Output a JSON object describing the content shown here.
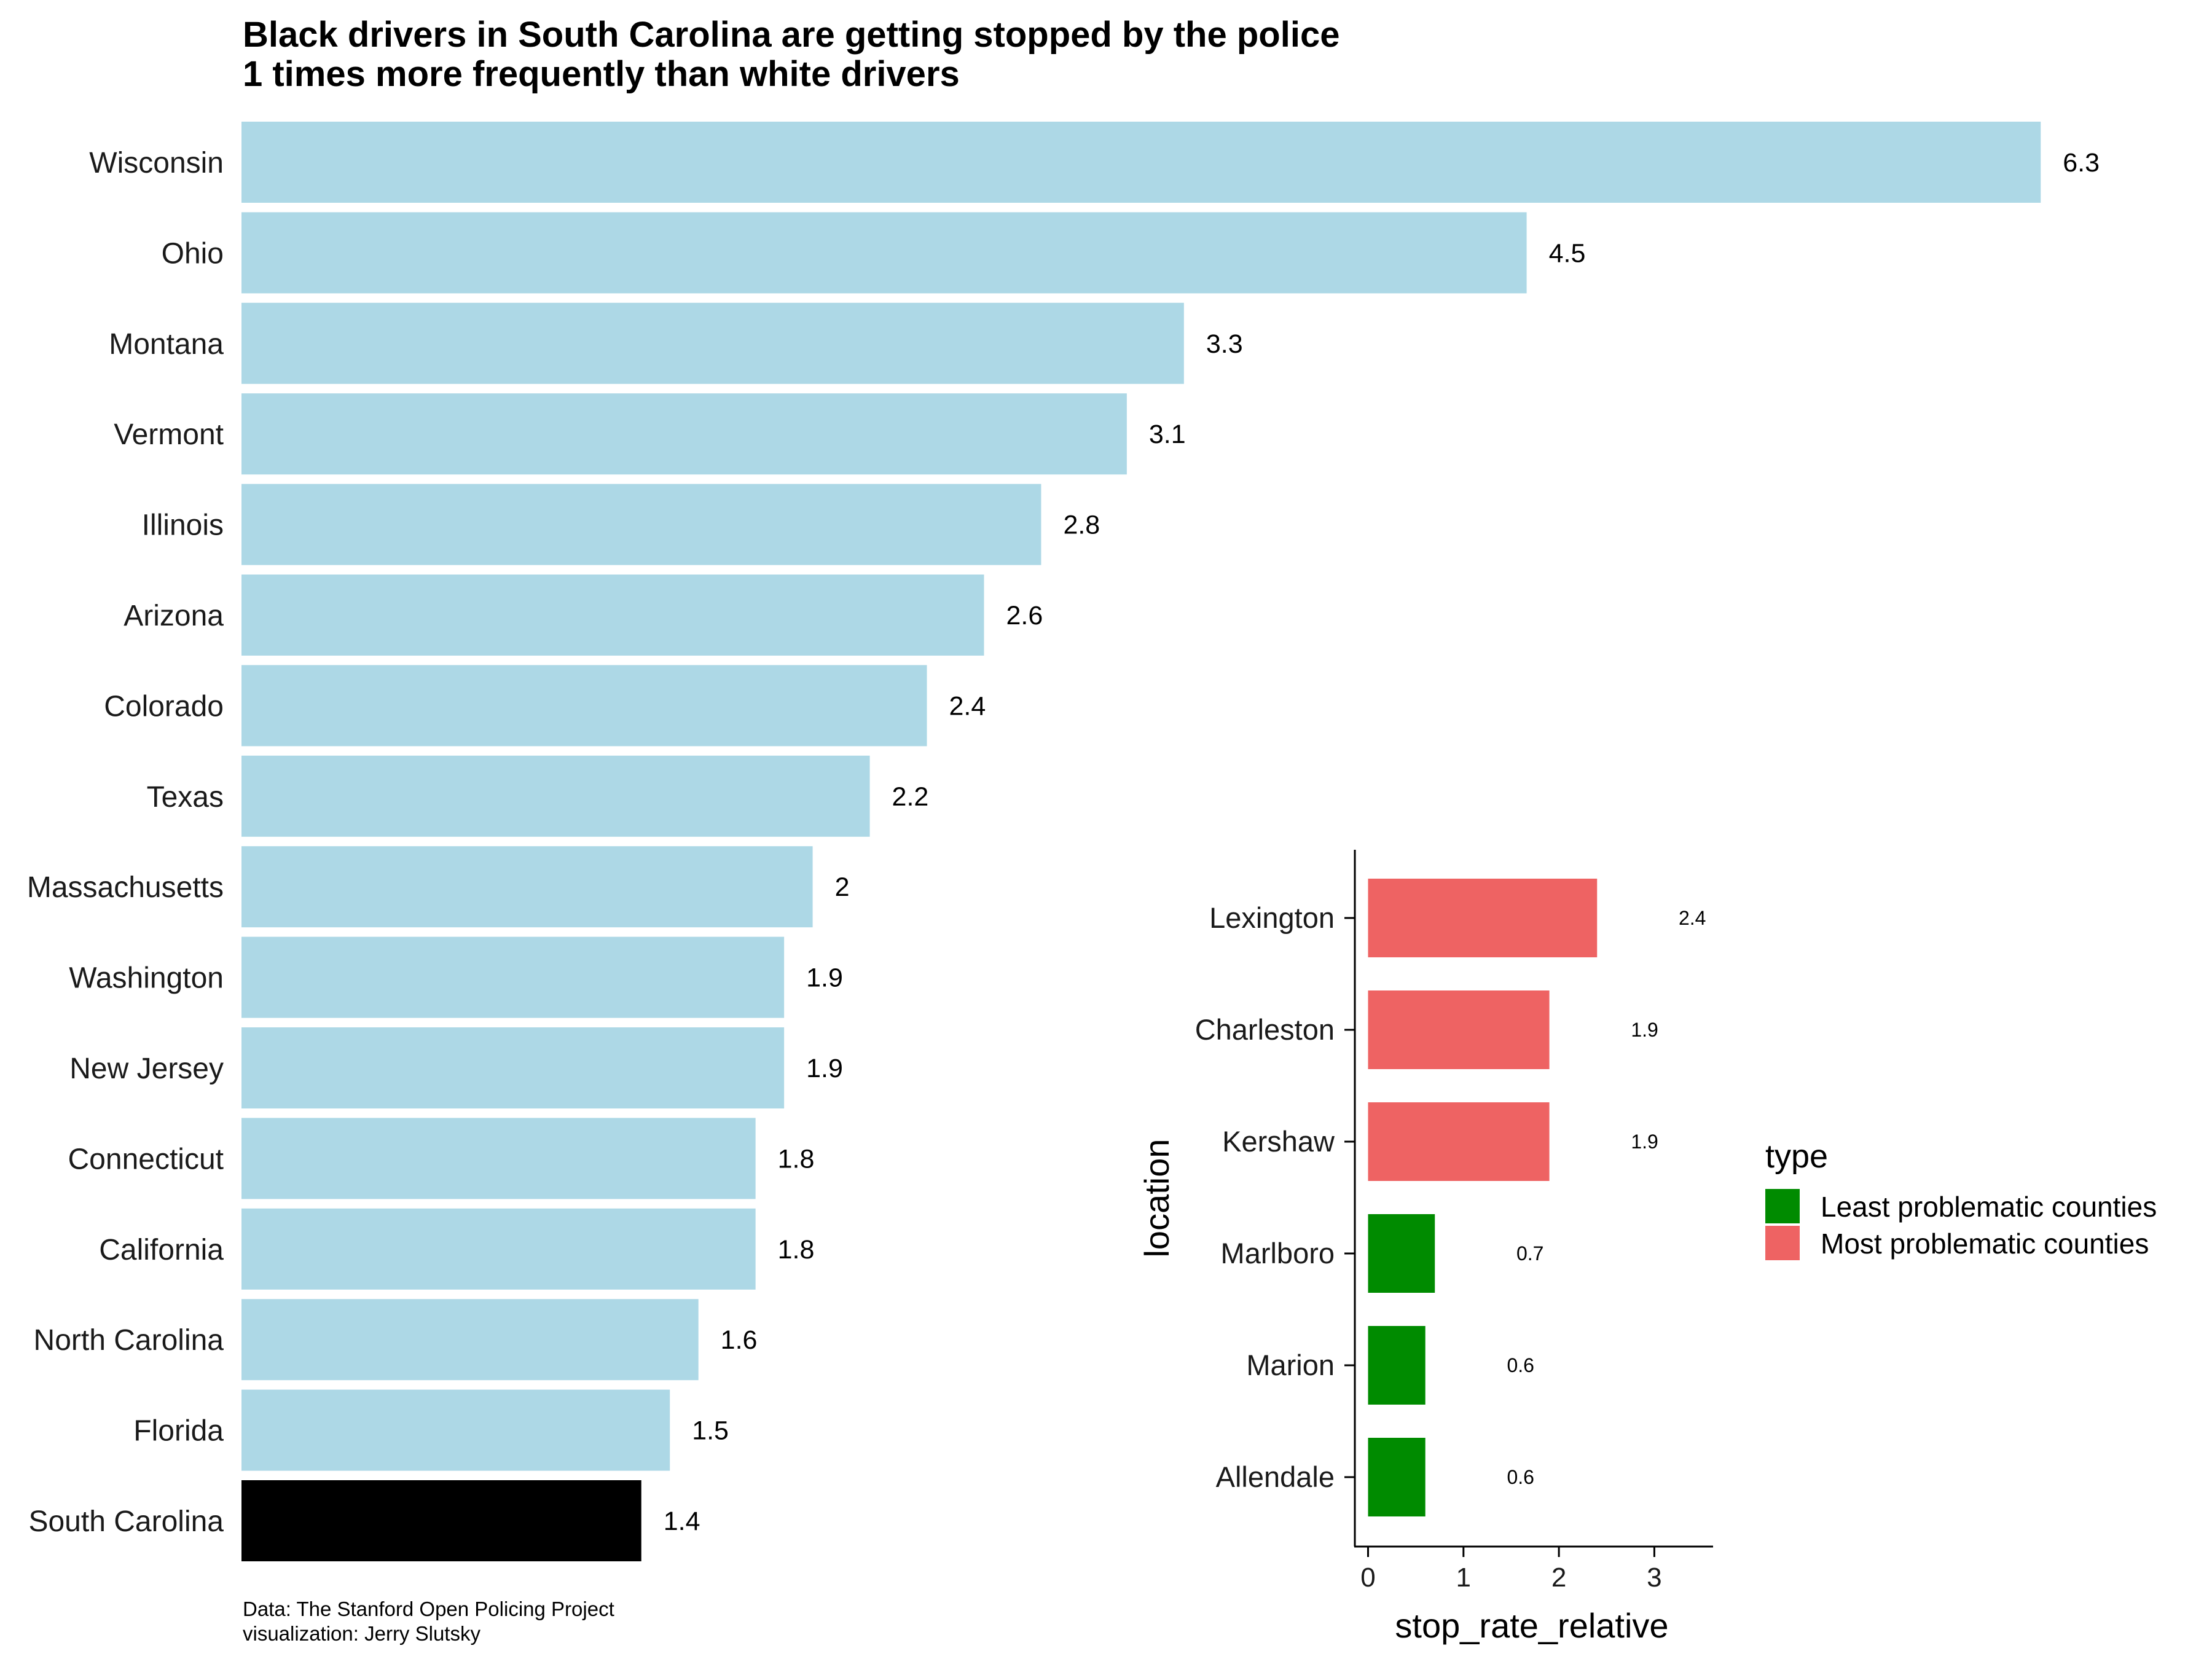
{
  "chart_data": [
    {
      "type": "bar",
      "orientation": "horizontal",
      "title": "Black drivers in South Carolina are getting stopped by the police\n 1 times more frequently than white drivers",
      "categories": [
        "Wisconsin",
        "Ohio",
        "Montana",
        "Vermont",
        "Illinois",
        "Arizona",
        "Colorado",
        "Texas",
        "Massachusetts",
        "Washington",
        "New Jersey",
        "Connecticut",
        "California",
        "North Carolina",
        "Florida",
        "South Carolina"
      ],
      "values": [
        6.3,
        4.5,
        3.3,
        3.1,
        2.8,
        2.6,
        2.4,
        2.2,
        2.0,
        1.9,
        1.9,
        1.8,
        1.8,
        1.6,
        1.5,
        1.4
      ],
      "value_labels": [
        "6.3",
        "4.5",
        "3.3",
        "3.1",
        "2.8",
        "2.6",
        "2.4",
        "2.2",
        "2",
        "1.9",
        "1.9",
        "1.8",
        "1.8",
        "1.6",
        "1.5",
        "1.4"
      ],
      "bar_color": "#add8e6",
      "highlight_category": "South Carolina",
      "highlight_color": "#000000",
      "caption": [
        "Data: The Stanford Open Policing Project",
        "visualization: Jerry Slutsky"
      ],
      "axes_visible": false,
      "grid": false
    },
    {
      "type": "bar",
      "orientation": "horizontal",
      "categories": [
        "Lexington",
        "Charleston",
        "Kershaw",
        "Marlboro",
        "Marion",
        "Allendale"
      ],
      "values": [
        2.4,
        1.9,
        1.9,
        0.7,
        0.6,
        0.6
      ],
      "value_labels": [
        "2.4",
        "1.9",
        "1.9",
        "0.7",
        "0.6",
        "0.6"
      ],
      "type_of": [
        "Most problematic counties",
        "Most problematic counties",
        "Most problematic counties",
        "Least problematic counties",
        "Least problematic counties",
        "Least problematic counties"
      ],
      "xlabel": "stop_rate_relative",
      "ylabel": "location",
      "xticks": [
        "0",
        "1",
        "2",
        "3"
      ],
      "xlim": [
        -0.15,
        3.6
      ],
      "grid": false,
      "legend": {
        "title": "type",
        "position": "right",
        "entries": [
          {
            "label": "Least problematic counties",
            "color": "#008b00"
          },
          {
            "label": "Most problematic counties",
            "color": "#ee6363"
          }
        ]
      }
    }
  ]
}
